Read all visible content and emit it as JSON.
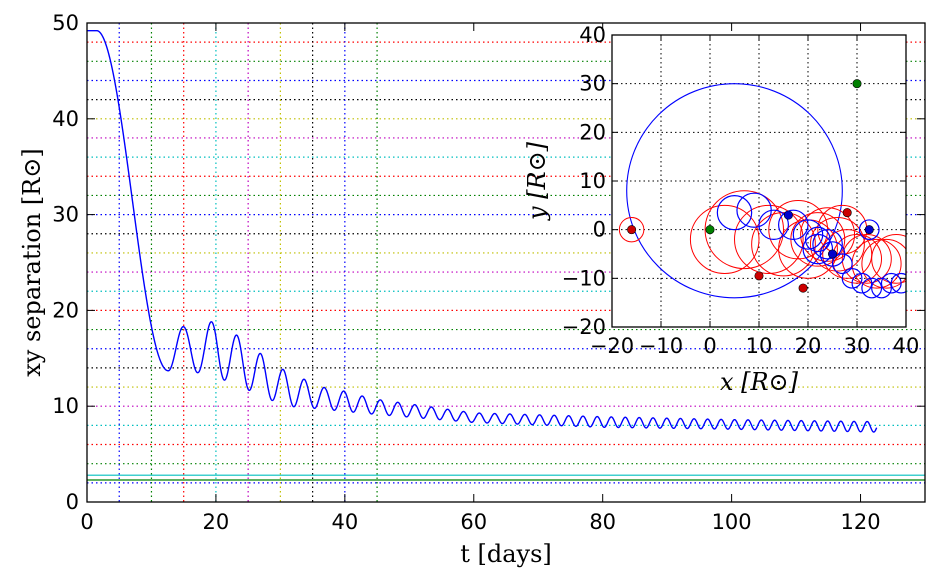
{
  "chart_data": [
    {
      "type": "line",
      "xlabel": "t  [days]",
      "ylabel": "xy  separation  [R⊙]",
      "xlim": [
        0,
        130
      ],
      "ylim": [
        0,
        50
      ],
      "xticks": [
        0,
        20,
        40,
        60,
        80,
        100,
        120
      ],
      "yticks": [
        0,
        10,
        20,
        30,
        40,
        50
      ],
      "grid": "dotted multicolor",
      "series": [
        {
          "color": "#0000ff",
          "model": {
            "t_start": 0,
            "t_end": 122.5,
            "plateau_value": 49.2,
            "plateau_until": 1.5,
            "first_minimum_t": 12.6,
            "first_minimum_value": 13.7,
            "oscillation_period_days_initial": 4.8,
            "oscillation_period_days_final": 2.0,
            "peaks": [
              {
                "t": 15.0,
                "value": 18.3
              },
              {
                "t": 20.0,
                "value": 18.9
              },
              {
                "t": 25.0,
                "value": 16.6
              },
              {
                "t": 29.0,
                "value": 14.3
              },
              {
                "t": 33.0,
                "value": 13.0
              },
              {
                "t": 37.0,
                "value": 11.9
              },
              {
                "t": 40.5,
                "value": 11.5
              },
              {
                "t": 44.0,
                "value": 10.8
              },
              {
                "t": 60.0,
                "value": 9.3
              },
              {
                "t": 80.0,
                "value": 8.9
              },
              {
                "t": 100.0,
                "value": 8.6
              },
              {
                "t": 120.5,
                "value": 8.4
              }
            ],
            "troughs": [
              {
                "t": 12.6,
                "value": 13.7
              },
              {
                "t": 17.2,
                "value": 13.5
              },
              {
                "t": 22.5,
                "value": 12.5
              },
              {
                "t": 27.2,
                "value": 11.0
              },
              {
                "t": 31.0,
                "value": 10.0
              },
              {
                "t": 35.0,
                "value": 9.8
              },
              {
                "t": 44.0,
                "value": 9.2
              },
              {
                "t": 60.0,
                "value": 8.3
              },
              {
                "t": 80.0,
                "value": 7.8
              },
              {
                "t": 100.0,
                "value": 7.6
              },
              {
                "t": 122.5,
                "value": 7.3
              }
            ]
          }
        }
      ],
      "reference_lines": [
        {
          "orientation": "horizontal",
          "value": 2.3,
          "color": "#008000",
          "style": "solid"
        },
        {
          "orientation": "horizontal",
          "value": 2.8,
          "color": "#00bfbf",
          "style": "solid"
        }
      ],
      "vertical_grid": [
        {
          "x": 5,
          "color": "#0000ff"
        },
        {
          "x": 10,
          "color": "#008000"
        },
        {
          "x": 15,
          "color": "#ff0000"
        },
        {
          "x": 20,
          "color": "#00bfbf"
        },
        {
          "x": 25,
          "color": "#bf00bf"
        },
        {
          "x": 30,
          "color": "#bfbf00"
        },
        {
          "x": 35,
          "color": "#000000"
        },
        {
          "x": 40,
          "color": "#0000ff"
        },
        {
          "x": 45,
          "color": "#008000"
        }
      ],
      "horizontal_grid_spacing": 2,
      "horizontal_grid_colors": [
        "#0000ff",
        "#008000",
        "#ff0000",
        "#00bfbf",
        "#bf00bf",
        "#bfbf00",
        "#000000"
      ]
    },
    {
      "type": "scatter",
      "xlabel": "x [R⊙]",
      "ylabel": "y [R⊙]",
      "xlim": [
        -20,
        40
      ],
      "ylim": [
        -20,
        40
      ],
      "xticks": [
        -20,
        -10,
        0,
        10,
        20,
        30,
        40
      ],
      "yticks": [
        -20,
        -10,
        0,
        10,
        20,
        30,
        40
      ],
      "grid": "dotted black",
      "large_orbit": {
        "color": "#0000ff",
        "center": [
          5,
          8
        ],
        "radius": 22
      },
      "red_circles": {
        "color": "#ff0000",
        "items": [
          {
            "center": [
              -16,
              0
            ],
            "radius": 2.5
          },
          {
            "center": [
              3,
              -2
            ],
            "radius": 7
          },
          {
            "center": [
              7,
              0
            ],
            "radius": 8
          },
          {
            "center": [
              12,
              -2
            ],
            "radius": 7
          },
          {
            "center": [
              15,
              -3
            ],
            "radius": 6.5
          },
          {
            "center": [
              18,
              0
            ],
            "radius": 6
          },
          {
            "center": [
              20,
              -4
            ],
            "radius": 6
          },
          {
            "center": [
              22,
              -2
            ],
            "radius": 5.5
          },
          {
            "center": [
              24,
              -1
            ],
            "radius": 5.5
          },
          {
            "center": [
              26,
              -3
            ],
            "radius": 5.5
          },
          {
            "center": [
              27,
              0
            ],
            "radius": 5
          },
          {
            "center": [
              28,
              -5
            ],
            "radius": 5
          },
          {
            "center": [
              30,
              -6
            ],
            "radius": 5
          },
          {
            "center": [
              32,
              -6
            ],
            "radius": 5
          },
          {
            "center": [
              34,
              -7
            ],
            "radius": 5
          },
          {
            "center": [
              36,
              -7
            ],
            "radius": 5
          },
          {
            "center": [
              38,
              -6
            ],
            "radius": 5
          }
        ]
      },
      "blue_circles": {
        "color": "#0000ff",
        "items": [
          {
            "center": [
              32.5,
              0
            ],
            "radius": 2
          },
          {
            "center": [
              5,
              3.5
            ],
            "radius": 3.5
          },
          {
            "center": [
              9,
              4
            ],
            "radius": 3.5
          },
          {
            "center": [
              13,
              1
            ],
            "radius": 3
          },
          {
            "center": [
              17,
              1
            ],
            "radius": 3
          },
          {
            "center": [
              20,
              -1
            ],
            "radius": 3
          },
          {
            "center": [
              22,
              -4
            ],
            "radius": 3
          },
          {
            "center": [
              24,
              -3
            ],
            "radius": 3
          },
          {
            "center": [
              22,
              -2
            ],
            "radius": 2.5
          },
          {
            "center": [
              25,
              -5
            ],
            "radius": 2.5
          },
          {
            "center": [
              27,
              -7
            ],
            "radius": 2
          },
          {
            "center": [
              29,
              -10
            ],
            "radius": 2
          },
          {
            "center": [
              31,
              -11
            ],
            "radius": 2
          },
          {
            "center": [
              33,
              -12
            ],
            "radius": 2
          },
          {
            "center": [
              35,
              -12
            ],
            "radius": 2
          },
          {
            "center": [
              37,
              -11
            ],
            "radius": 2
          },
          {
            "center": [
              39,
              -11
            ],
            "radius": 2
          }
        ]
      },
      "points": [
        {
          "x": -16,
          "y": 0,
          "color": "#cc0000"
        },
        {
          "x": 0,
          "y": 0,
          "color": "#008000"
        },
        {
          "x": 10,
          "y": -9.5,
          "color": "#cc0000"
        },
        {
          "x": 16,
          "y": 3,
          "color": "#0000cc"
        },
        {
          "x": 19,
          "y": -12,
          "color": "#cc0000"
        },
        {
          "x": 28,
          "y": 3.5,
          "color": "#cc0000"
        },
        {
          "x": 32.5,
          "y": 0,
          "color": "#0000cc"
        },
        {
          "x": 25,
          "y": -5,
          "color": "#0000cc"
        },
        {
          "x": 30,
          "y": 30,
          "color": "#008000"
        }
      ]
    }
  ]
}
